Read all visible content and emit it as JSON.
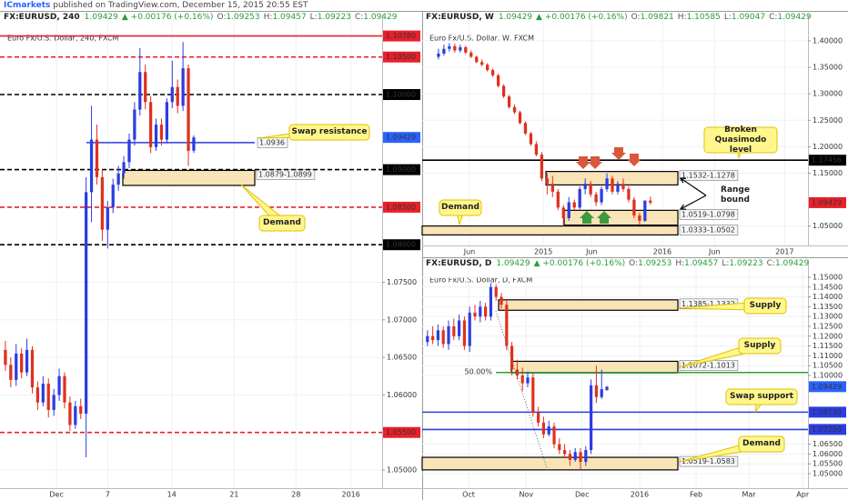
{
  "header": {
    "author": "ICmarkets",
    "text": "published on TradingView.com, December 15, 2015 20:55 EST"
  },
  "chart_data": [
    {
      "type": "candlestick",
      "symbol": "FX:EURUSD, 240",
      "price": "1.09429",
      "change": "▲ +0.00176 (+0.16%)",
      "quote": [
        {
          "key": "O:",
          "value": "1.09253"
        },
        {
          "key": "H:",
          "value": "1.09457"
        },
        {
          "key": "L:",
          "value": "1.09223"
        },
        {
          "key": "C:",
          "value": "1.09429"
        }
      ],
      "title": "Euro Fx/U.S. Dollar, 240, FXCM",
      "up_color": "#2b3de0",
      "down_color": "#e0301e",
      "open": [
        1.066,
        1.064,
        1.062,
        1.0655,
        1.063,
        1.066,
        1.061,
        1.059,
        1.0615,
        1.058,
        1.06,
        1.0625,
        1.059,
        1.056,
        1.0585,
        1.0575,
        1.087,
        1.094,
        1.089,
        1.082,
        1.085,
        1.088,
        1.0895,
        1.091,
        1.094,
        1.098,
        1.103,
        1.099,
        1.093,
        1.096,
        1.094,
        1.099,
        1.101,
        1.0985,
        1.1035,
        1.09253
      ],
      "high": [
        1.0672,
        1.065,
        1.0668,
        1.0662,
        1.0675,
        1.0665,
        1.0618,
        1.0625,
        1.0622,
        1.0608,
        1.0635,
        1.063,
        1.0598,
        1.0592,
        1.0595,
        1.089,
        1.0985,
        1.096,
        1.09,
        1.0858,
        1.0888,
        1.0905,
        1.0918,
        1.0948,
        1.099,
        1.1062,
        1.104,
        1.0998,
        1.0968,
        1.0968,
        1.0995,
        1.1045,
        1.102,
        1.107,
        1.104,
        1.09457
      ],
      "low": [
        1.0632,
        1.061,
        1.0612,
        1.0622,
        1.0625,
        1.0602,
        1.058,
        1.0585,
        1.057,
        1.0572,
        1.0592,
        1.0582,
        1.0552,
        1.0555,
        1.0568,
        1.0517,
        1.083,
        1.088,
        1.0805,
        1.0795,
        1.0842,
        1.0872,
        1.0888,
        1.0902,
        1.0932,
        1.0972,
        1.098,
        1.0922,
        1.0925,
        1.0932,
        1.0935,
        1.0982,
        1.0975,
        1.0978,
        1.0905,
        1.09223
      ],
      "close": [
        1.064,
        1.062,
        1.0655,
        1.063,
        1.066,
        1.061,
        1.059,
        1.0615,
        1.058,
        1.06,
        1.0625,
        1.059,
        1.056,
        1.0585,
        1.0575,
        1.087,
        1.094,
        1.089,
        1.082,
        1.085,
        1.088,
        1.0895,
        1.091,
        1.094,
        1.098,
        1.103,
        1.099,
        1.093,
        1.096,
        1.094,
        1.099,
        1.101,
        1.0985,
        1.1035,
        1.0925,
        1.09429
      ],
      "xlim": [
        -1,
        70
      ],
      "xticks": [
        {
          "value": 9.5,
          "label": "Dec"
        },
        {
          "value": 19,
          "label": "7"
        },
        {
          "value": 30.9,
          "label": "14"
        },
        {
          "value": 42.5,
          "label": "21"
        },
        {
          "value": 54,
          "label": "28"
        },
        {
          "value": 64.2,
          "label": "2016"
        }
      ],
      "ylim": [
        1.04758,
        1.10896
      ],
      "yticks": [
        {
          "value": 1.075,
          "label": "1.07500"
        },
        {
          "value": 1.07,
          "label": "1.07000"
        },
        {
          "value": 1.065,
          "label": "1.06500"
        },
        {
          "value": 1.06,
          "label": "1.06000"
        },
        {
          "value": 1.05,
          "label": "1.05000"
        }
      ],
      "grid": true,
      "levels": [
        {
          "value": 1.1078,
          "label": "1.10780",
          "color": "#e8202a",
          "dash": false
        },
        {
          "value": 1.105,
          "label": "1.10500",
          "color": "#e8202a",
          "dash": true
        },
        {
          "value": 1.1,
          "label": "1.10000",
          "color": "#000000",
          "dash": true
        },
        {
          "value": 1.09,
          "label": "1.09000",
          "color": "#000000",
          "dash": true
        },
        {
          "value": 1.085,
          "label": "1.08500",
          "color": "#e8202a",
          "dash": true
        },
        {
          "value": 1.08,
          "label": "1.08000",
          "color": "#000000",
          "dash": true
        },
        {
          "value": 1.055,
          "label": "1.05500",
          "color": "#e8202a",
          "dash": true
        }
      ],
      "zones": [
        {
          "low": 1.0879,
          "high": 1.0899,
          "label": "1.0879-1.0899"
        }
      ],
      "lines": [
        {
          "value": 1.0936,
          "label": "1.0936",
          "color": "#2b3de0"
        }
      ],
      "last": {
        "value": 1.09429,
        "label": "1.09429",
        "color": "#2962ff"
      },
      "annotations": [
        "Swap resistance",
        "Demand"
      ]
    },
    {
      "type": "candlestick",
      "symbol": "FX:EURUSD, W",
      "price": "1.09429",
      "change": "▲ +0.00176 (+0.16%)",
      "quote": [
        {
          "key": "O:",
          "value": "1.09821"
        },
        {
          "key": "H:",
          "value": "1.10585"
        },
        {
          "key": "L:",
          "value": "1.09047"
        },
        {
          "key": "C:",
          "value": "1.09429"
        }
      ],
      "title": "Euro Fx/U.S. Dollar, W, FXCM",
      "up_color": "#2b3de0",
      "down_color": "#e0301e",
      "open": [
        1.37,
        1.376,
        1.385,
        1.39,
        1.382,
        1.388,
        1.378,
        1.37,
        1.36,
        1.355,
        1.345,
        1.335,
        1.315,
        1.295,
        1.275,
        1.265,
        1.245,
        1.225,
        1.205,
        1.185,
        1.14,
        1.13,
        1.115,
        1.085,
        1.065,
        1.095,
        1.085,
        1.12,
        1.13,
        1.11,
        1.095,
        1.12,
        1.14,
        1.115,
        1.13,
        1.12,
        1.1,
        1.07,
        1.06,
        1.09821
      ],
      "high": [
        1.385,
        1.393,
        1.396,
        1.395,
        1.393,
        1.391,
        1.382,
        1.372,
        1.365,
        1.358,
        1.348,
        1.338,
        1.318,
        1.298,
        1.28,
        1.268,
        1.248,
        1.228,
        1.21,
        1.19,
        1.15,
        1.145,
        1.12,
        1.09,
        1.105,
        1.1,
        1.125,
        1.14,
        1.135,
        1.115,
        1.125,
        1.15,
        1.145,
        1.135,
        1.14,
        1.125,
        1.105,
        1.075,
        1.099,
        1.10585
      ],
      "low": [
        1.365,
        1.372,
        1.38,
        1.378,
        1.378,
        1.375,
        1.368,
        1.358,
        1.352,
        1.342,
        1.332,
        1.312,
        1.292,
        1.272,
        1.262,
        1.242,
        1.222,
        1.202,
        1.182,
        1.135,
        1.11,
        1.105,
        1.08,
        1.05,
        1.06,
        1.08,
        1.082,
        1.11,
        1.105,
        1.088,
        1.09,
        1.115,
        1.11,
        1.11,
        1.115,
        1.095,
        1.065,
        1.052,
        1.058,
        1.09047
      ],
      "close": [
        1.376,
        1.385,
        1.39,
        1.382,
        1.388,
        1.378,
        1.37,
        1.36,
        1.355,
        1.345,
        1.335,
        1.315,
        1.295,
        1.275,
        1.265,
        1.245,
        1.225,
        1.205,
        1.185,
        1.14,
        1.13,
        1.115,
        1.085,
        1.065,
        1.095,
        1.085,
        1.12,
        1.13,
        1.11,
        1.095,
        1.12,
        1.14,
        1.115,
        1.13,
        1.12,
        1.1,
        1.07,
        1.06,
        1.098,
        1.09429
      ],
      "xlim": [
        -3,
        68
      ],
      "xticks": [
        {
          "value": 5.7,
          "label": "Jun"
        },
        {
          "value": 19.3,
          "label": "2015"
        },
        {
          "value": 28.2,
          "label": "Jun"
        },
        {
          "value": 41.2,
          "label": "2016"
        },
        {
          "value": 50.8,
          "label": "Jun"
        },
        {
          "value": 63.7,
          "label": "2017"
        }
      ],
      "ylim": [
        1.0134,
        1.4258
      ],
      "yticks": [
        {
          "value": 1.4,
          "label": "1.40000"
        },
        {
          "value": 1.35,
          "label": "1.35000"
        },
        {
          "value": 1.3,
          "label": "1.30000"
        },
        {
          "value": 1.25,
          "label": "1.25000"
        },
        {
          "value": 1.2,
          "label": "1.20000"
        },
        {
          "value": 1.15,
          "label": "1.15000"
        },
        {
          "value": 1.05,
          "label": "1.05000"
        }
      ],
      "grid": true,
      "levels": [
        {
          "value": 1.17456,
          "label": "1.17456",
          "color": "#000000",
          "dash": false
        }
      ],
      "zones": [
        {
          "low": 1.1278,
          "high": 1.1532,
          "label": "1.1532-1.1278"
        },
        {
          "low": 1.0519,
          "high": 1.0798,
          "label": "1.0519-1.0798"
        },
        {
          "low": 1.0333,
          "high": 1.0502,
          "label": "1.0333-1.0502"
        }
      ],
      "lines": [],
      "last": {
        "value": 1.09429,
        "label": "1.09429",
        "color": "#e8202a"
      },
      "annotations": [
        "Broken Quasimodo level",
        "Range bound",
        "Demand"
      ]
    },
    {
      "type": "candlestick",
      "symbol": "FX:EURUSD, D",
      "price": "1.09429",
      "change": "▲ +0.00176 (+0.16%)",
      "quote": [
        {
          "key": "O:",
          "value": "1.09253"
        },
        {
          "key": "H:",
          "value": "1.09457"
        },
        {
          "key": "L:",
          "value": "1.09223"
        },
        {
          "key": "C:",
          "value": "1.09429"
        }
      ],
      "title": "Euro Fx/U.S. Dollar, D, FXCM",
      "up_color": "#2b3de0",
      "down_color": "#e0301e",
      "open": [
        1.117,
        1.12,
        1.118,
        1.123,
        1.116,
        1.125,
        1.12,
        1.128,
        1.115,
        1.132,
        1.13,
        1.135,
        1.13,
        1.145,
        1.14,
        1.136,
        1.115,
        1.103,
        1.1,
        1.096,
        1.099,
        1.081,
        1.076,
        1.07,
        1.074,
        1.065,
        1.062,
        1.06,
        1.057,
        1.061,
        1.056,
        1.062,
        1.095,
        1.089,
        1.09253
      ],
      "high": [
        1.123,
        1.125,
        1.126,
        1.125,
        1.128,
        1.129,
        1.131,
        1.13,
        1.135,
        1.136,
        1.138,
        1.137,
        1.147,
        1.1465,
        1.142,
        1.138,
        1.117,
        1.108,
        1.104,
        1.102,
        1.101,
        1.084,
        1.079,
        1.077,
        1.076,
        1.068,
        1.065,
        1.062,
        1.063,
        1.063,
        1.064,
        1.098,
        1.105,
        1.103,
        1.09457
      ],
      "low": [
        1.115,
        1.116,
        1.115,
        1.114,
        1.113,
        1.118,
        1.118,
        1.113,
        1.112,
        1.128,
        1.127,
        1.128,
        1.128,
        1.138,
        1.134,
        1.113,
        1.1,
        1.098,
        1.092,
        1.094,
        1.079,
        1.074,
        1.068,
        1.069,
        1.063,
        1.06,
        1.058,
        1.054,
        1.056,
        1.052,
        1.054,
        1.06,
        1.086,
        1.088,
        1.09223
      ],
      "close": [
        1.12,
        1.118,
        1.123,
        1.116,
        1.125,
        1.12,
        1.128,
        1.115,
        1.132,
        1.13,
        1.135,
        1.13,
        1.145,
        1.14,
        1.136,
        1.115,
        1.103,
        1.1,
        1.096,
        1.099,
        1.081,
        1.076,
        1.07,
        1.074,
        1.065,
        1.062,
        1.06,
        1.057,
        1.061,
        1.056,
        1.062,
        1.095,
        1.089,
        1.093,
        1.09429
      ],
      "xlim": [
        -1,
        72.1
      ],
      "xticks": [
        {
          "value": 7.8,
          "label": "Oct"
        },
        {
          "value": 18.7,
          "label": "Nov"
        },
        {
          "value": 29.3,
          "label": "Dec"
        },
        {
          "value": 40.2,
          "label": "2016"
        },
        {
          "value": 50.9,
          "label": "Feb"
        },
        {
          "value": 60.9,
          "label": "Mar"
        },
        {
          "value": 71.1,
          "label": "Apr"
        }
      ],
      "ylim": [
        1.04259,
        1.15231
      ],
      "yticks": [
        {
          "value": 1.15,
          "label": "1.15000"
        },
        {
          "value": 1.145,
          "label": "1.14500"
        },
        {
          "value": 1.14,
          "label": "1.14000"
        },
        {
          "value": 1.135,
          "label": "1.13500"
        },
        {
          "value": 1.13,
          "label": "1.13000"
        },
        {
          "value": 1.125,
          "label": "1.12500"
        },
        {
          "value": 1.12,
          "label": "1.12000"
        },
        {
          "value": 1.115,
          "label": "1.11500"
        },
        {
          "value": 1.11,
          "label": "1.11000"
        },
        {
          "value": 1.105,
          "label": "1.10500"
        },
        {
          "value": 1.1,
          "label": "1.10000"
        },
        {
          "value": 1.065,
          "label": "1.06500"
        },
        {
          "value": 1.06,
          "label": "1.06000"
        },
        {
          "value": 1.055,
          "label": "1.05500"
        },
        {
          "value": 1.05,
          "label": "1.05000"
        }
      ],
      "grid": true,
      "levels": [
        {
          "value": 1.0813,
          "label": "1.08130",
          "color": "#2b3de0",
          "dash": false
        },
        {
          "value": 1.0725,
          "label": "1.07250",
          "color": "#2b3de0",
          "dash": false
        }
      ],
      "zones": [
        {
          "low": 1.1332,
          "high": 1.1385,
          "label": "1.1385-1.1332"
        },
        {
          "low": 1.1013,
          "high": 1.1072,
          "label": "1.1072-1.1013"
        },
        {
          "low": 1.0519,
          "high": 1.0583,
          "label": "1.0519-1.0583"
        }
      ],
      "lines": [
        {
          "value": 1.1015,
          "label": "50.00%",
          "color": "#2ca02c"
        }
      ],
      "last": {
        "value": 1.09429,
        "label": "1.09429",
        "color": "#2962ff"
      },
      "annotations": [
        "Supply",
        "Supply",
        "Swap support",
        "Demand"
      ]
    }
  ]
}
